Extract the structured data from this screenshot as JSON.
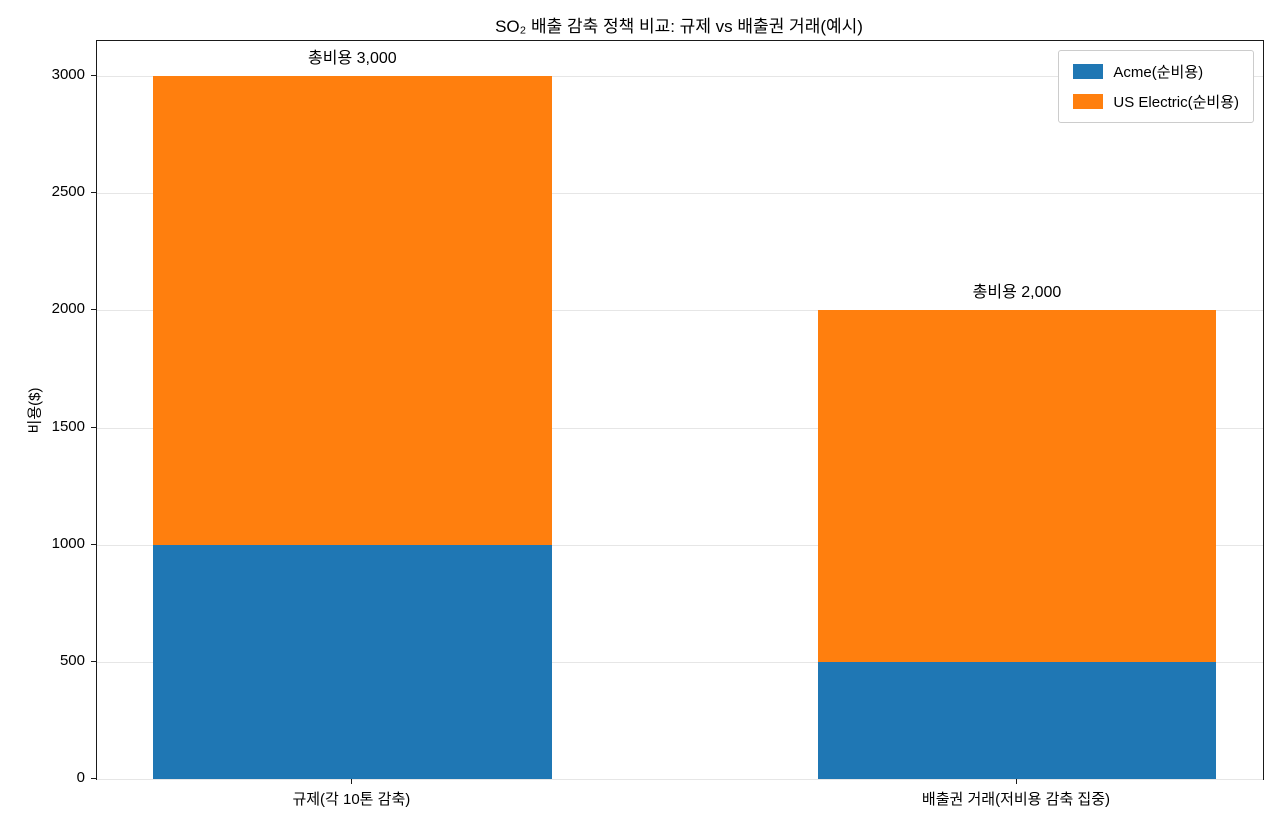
{
  "chart_data": {
    "type": "bar",
    "stacked": true,
    "title": "SO₂ 배출 감축 정책 비교: 규제 vs 배출권 거래(예시)",
    "xlabel": "",
    "ylabel": "비용($)",
    "categories": [
      "규제(각 10톤 감축)",
      "배출권 거래(저비용 감축 집중)"
    ],
    "series": [
      {
        "name": "Acme(순비용)",
        "color": "#1f77b4",
        "values": [
          1000,
          500
        ]
      },
      {
        "name": "US Electric(순비용)",
        "color": "#ff7f0e",
        "values": [
          2000,
          1500
        ]
      }
    ],
    "totals": [
      3000,
      2000
    ],
    "annotations": [
      "총비용 3,000",
      "총비용 2,000"
    ],
    "yticks": [
      0,
      500,
      1000,
      1500,
      2000,
      2500,
      3000
    ],
    "ylim": [
      0,
      3150
    ],
    "grid": true,
    "legend_position": "upper right"
  }
}
